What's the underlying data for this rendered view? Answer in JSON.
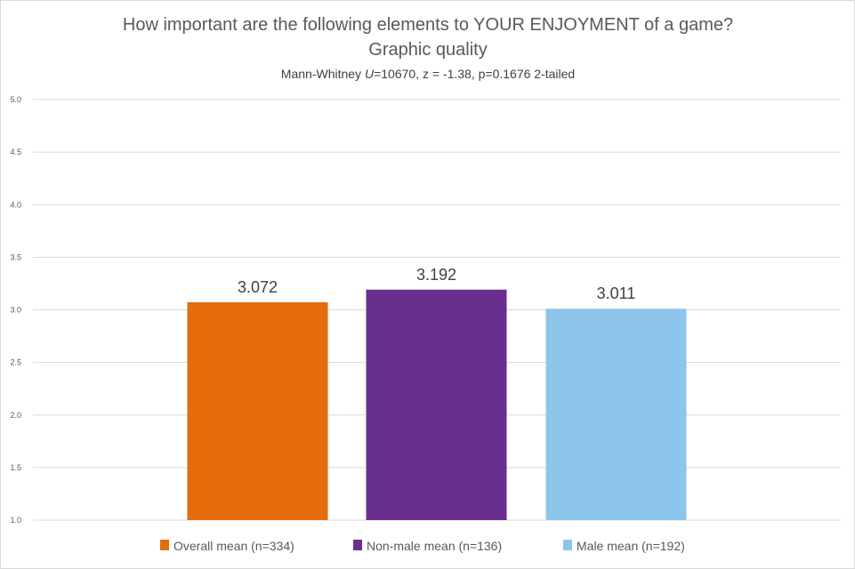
{
  "chart_data": {
    "type": "bar",
    "title": "How important are the following elements to YOUR ENJOYMENT of a game?",
    "subtitle": "Graphic quality",
    "annotation": {
      "prefix": "Mann-Whitney ",
      "u": "U",
      "rest": "=10670, z = -1.38, p=0.1676 2-tailed"
    },
    "categories": [
      "Overall mean (n=334)",
      "Non-male mean (n=136)",
      "Male mean (n=192)"
    ],
    "values": [
      3.072,
      3.192,
      3.011
    ],
    "data_labels": [
      "3.072",
      "3.192",
      "3.011"
    ],
    "colors": [
      "#e46c0a",
      "#6a2e8e",
      "#8ec5ea"
    ],
    "ylim": [
      1.0,
      5.0
    ],
    "yticks": [
      "1.0",
      "1.5",
      "2.0",
      "2.5",
      "3.0",
      "3.5",
      "4.0",
      "4.5",
      "5.0"
    ],
    "grid": true,
    "legend": "bottom",
    "xlabel": "",
    "ylabel": ""
  }
}
